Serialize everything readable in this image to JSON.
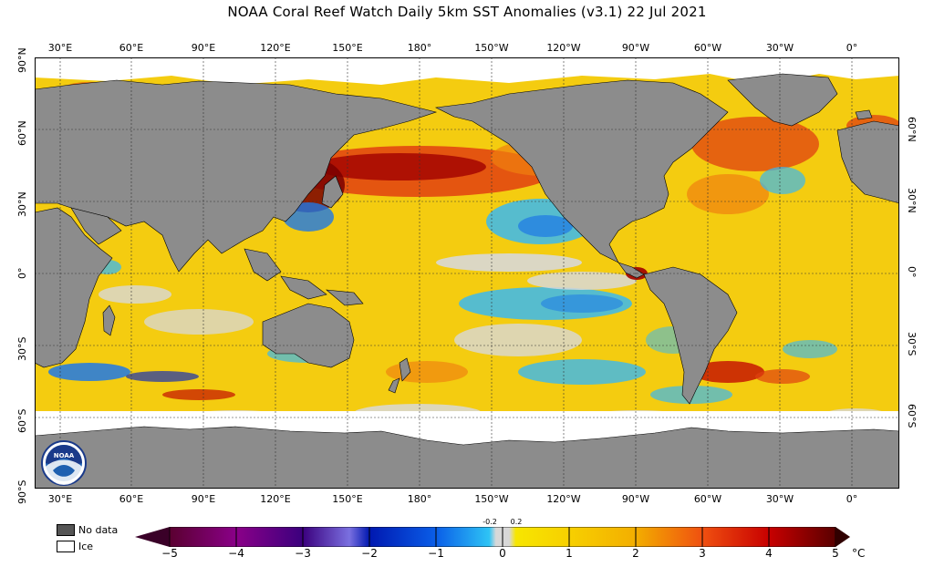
{
  "title": "NOAA Coral Reef Watch Daily 5km SST Anomalies  (v3.1)   22 Jul 2021",
  "longitude_labels": [
    "30°E",
    "60°E",
    "90°E",
    "120°E",
    "150°E",
    "180°",
    "150°W",
    "120°W",
    "90°W",
    "60°W",
    "30°W",
    "0°"
  ],
  "latitude_labels_left": [
    "90°N",
    "60°N",
    "30°N",
    "0°",
    "30°S",
    "60°S",
    "90°S"
  ],
  "latitude_labels_right": [
    "60°N",
    "30°N",
    "0°",
    "30°S",
    "60°S"
  ],
  "legend": {
    "no_data": "No data",
    "ice": "Ice"
  },
  "colorbar": {
    "tick_labels": [
      "−5",
      "−4",
      "−3",
      "−2",
      "−1",
      "0",
      "1",
      "2",
      "3",
      "4",
      "5"
    ],
    "neutral_band_labels": [
      "-0.2",
      "0.2"
    ],
    "unit": "°C",
    "colors": {
      "-5": "#5a0030",
      "-4": "#3b007e",
      "-3": "#0018b0",
      "-2": "#0a5ee8",
      "-1": "#2ec4f5",
      "0": "#d8d8d8",
      "1": "#f7e600",
      "2": "#f3ae00",
      "3": "#f05010",
      "4": "#c80000",
      "5": "#5a0000"
    }
  },
  "map_colors": {
    "land": "#8c8c8c",
    "ice": "#ffffff",
    "ocean_base": "#f4cc10"
  },
  "logo": {
    "icon": "noaa-logo",
    "text": "NOAA"
  }
}
